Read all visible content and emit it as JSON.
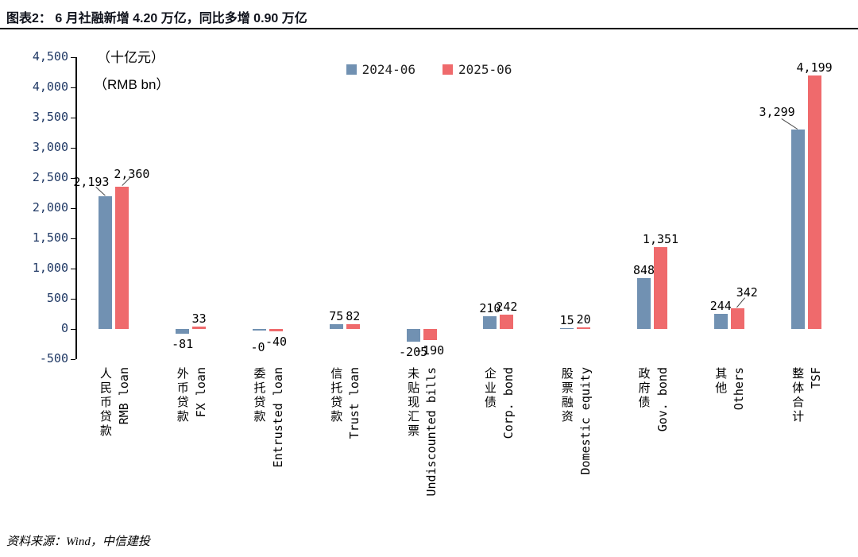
{
  "header": {
    "title": "图表2： 6 月社融新增 4.20 万亿，同比多增 0.90 万亿"
  },
  "footer": {
    "source": "资料来源：Wind，中信建投"
  },
  "colors": {
    "series_2024": "#7191B2",
    "series_2025": "#EF6A6C",
    "axis_label": "#1F3864",
    "axis_line": "#000000",
    "value_label": "#000000"
  },
  "chart_data": {
    "type": "bar",
    "title": "6 月社融新增 4.20 万亿，同比多增 0.90 万亿",
    "unit_cn": "（十亿元）",
    "unit_en": "（RMB bn）",
    "grid": false,
    "legend_position": "top-center",
    "y_axis": {
      "min": -500,
      "max": 4500,
      "step": 500,
      "tick_labels": [
        "4,500",
        "4,000",
        "3,500",
        "3,000",
        "2,500",
        "2,000",
        "1,500",
        "1,000",
        "500",
        "0",
        "-500"
      ]
    },
    "categories": [
      {
        "cn": "人民币贷款",
        "en": "RMB loan"
      },
      {
        "cn": "外币贷款",
        "en": "FX loan"
      },
      {
        "cn": "委托贷款",
        "en": "Entrusted loan"
      },
      {
        "cn": "信托贷款",
        "en": "Trust loan"
      },
      {
        "cn": "未贴现汇票",
        "en": "Undiscounted bills"
      },
      {
        "cn": "企业债",
        "en": "Corp. bond"
      },
      {
        "cn": "股票融资",
        "en": "Domestic equity"
      },
      {
        "cn": "政府债",
        "en": "Gov. bond"
      },
      {
        "cn": "其他",
        "en": "Others"
      },
      {
        "cn": "整体合计",
        "en": "TSF"
      }
    ],
    "series": [
      {
        "name": "2024-06",
        "color": "#7191B2",
        "values": [
          2193,
          -81,
          0,
          75,
          -205,
          210,
          15,
          848,
          244,
          3299
        ],
        "labels": [
          "2,193",
          "-81",
          "-0",
          "75",
          "-205",
          "210",
          "15",
          "848",
          "244",
          "3,299"
        ]
      },
      {
        "name": "2025-06",
        "color": "#EF6A6C",
        "values": [
          2360,
          33,
          -40,
          82,
          -190,
          242,
          20,
          1351,
          342,
          4199
        ],
        "labels": [
          "2,360",
          "33",
          "-40",
          "82",
          "-190",
          "242",
          "20",
          "1,351",
          "342",
          "4,199"
        ]
      }
    ]
  }
}
